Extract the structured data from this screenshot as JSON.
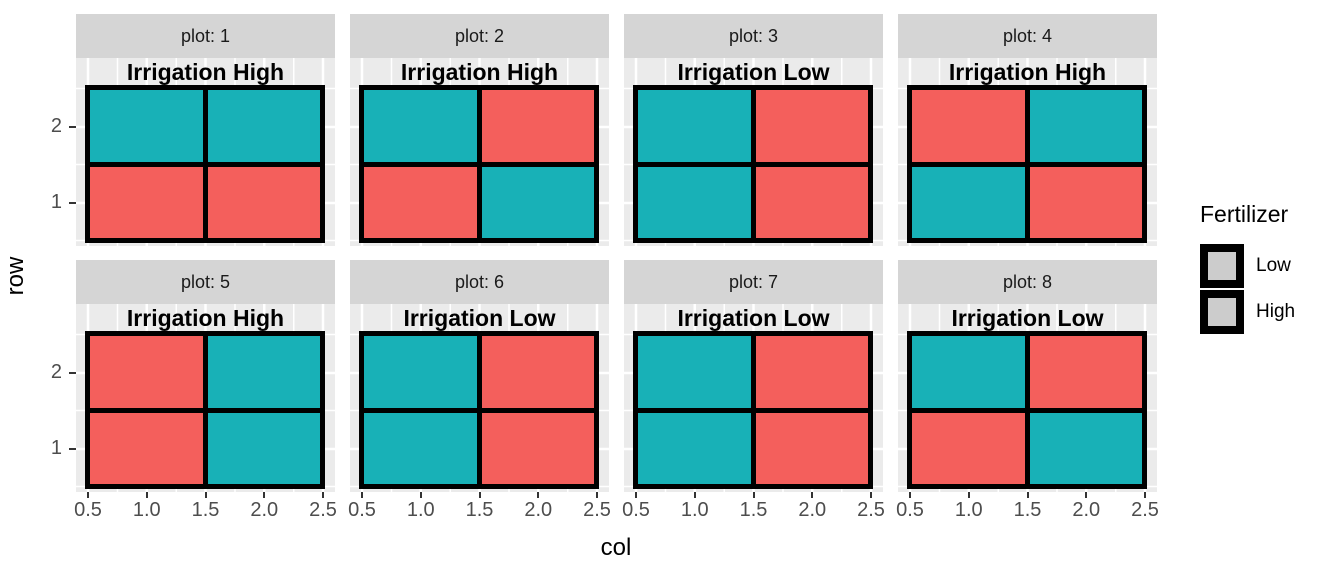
{
  "figure": {
    "x_axis_title": "col",
    "y_axis_title": "row",
    "x_tick_labels": [
      "0.5",
      "1.0",
      "1.5",
      "2.0",
      "2.5"
    ],
    "y_tick_labels": [
      "2",
      "1"
    ]
  },
  "legend": {
    "title": "Fertilizer",
    "entries": [
      {
        "label": "Low",
        "color": "#F45F5C"
      },
      {
        "label": "High",
        "color": "#18B1B7"
      }
    ]
  },
  "colors": {
    "fill_low": "#F45F5C",
    "fill_high": "#18B1B7",
    "strip_background": "#D5D5D5",
    "panel_background": "#EBEBEB",
    "gridline": "#FFFFFF",
    "tile_border": "#000000",
    "tick_text": "#4D4D4D"
  },
  "chart_data": {
    "type": "heatmap",
    "xlabel": "col",
    "ylabel": "row",
    "x_values": [
      1,
      2
    ],
    "y_values": [
      1,
      2
    ],
    "x_ticks": [
      0.5,
      1.0,
      1.5,
      2.0,
      2.5
    ],
    "y_ticks": [
      1,
      2
    ],
    "fill_variable": "Fertilizer",
    "fill_levels": [
      "Low",
      "High"
    ],
    "facet_variable": "plot",
    "facet_layout": "2 rows x 4 columns; plots 1-4 in top row, plots 5-8 in bottom row",
    "cell_order": "cells listed as [row2-col1, row2-col2, row1-col1, row1-col2] i.e. top-left, top-right, bottom-left, bottom-right",
    "facets": [
      {
        "plot": 1,
        "strip_label": "plot: 1",
        "annotation": "Irrigation High",
        "cells": [
          "High",
          "High",
          "Low",
          "Low"
        ]
      },
      {
        "plot": 2,
        "strip_label": "plot: 2",
        "annotation": "Irrigation High",
        "cells": [
          "High",
          "Low",
          "Low",
          "High"
        ]
      },
      {
        "plot": 3,
        "strip_label": "plot: 3",
        "annotation": "Irrigation Low",
        "cells": [
          "High",
          "Low",
          "High",
          "Low"
        ]
      },
      {
        "plot": 4,
        "strip_label": "plot: 4",
        "annotation": "Irrigation High",
        "cells": [
          "Low",
          "High",
          "High",
          "Low"
        ]
      },
      {
        "plot": 5,
        "strip_label": "plot: 5",
        "annotation": "Irrigation High",
        "cells": [
          "Low",
          "High",
          "Low",
          "High"
        ]
      },
      {
        "plot": 6,
        "strip_label": "plot: 6",
        "annotation": "Irrigation Low",
        "cells": [
          "High",
          "Low",
          "High",
          "Low"
        ]
      },
      {
        "plot": 7,
        "strip_label": "plot: 7",
        "annotation": "Irrigation Low",
        "cells": [
          "High",
          "Low",
          "High",
          "Low"
        ]
      },
      {
        "plot": 8,
        "strip_label": "plot: 8",
        "annotation": "Irrigation Low",
        "cells": [
          "High",
          "Low",
          "Low",
          "High"
        ]
      }
    ]
  }
}
